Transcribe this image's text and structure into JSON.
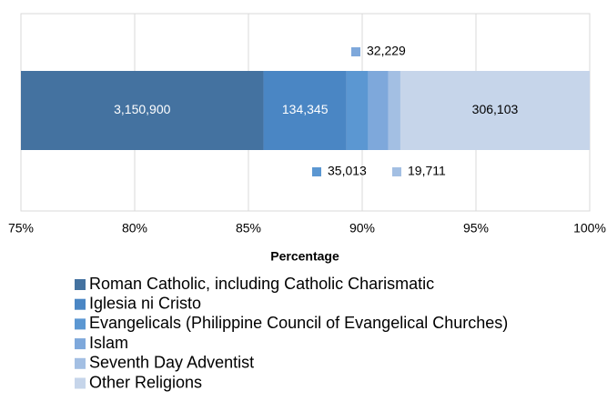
{
  "chart_data": {
    "type": "stacked_percent_bar",
    "x_label": "Percentage",
    "xlim": [
      75,
      100
    ],
    "xticks": [
      {
        "value": 75,
        "label": "75%"
      },
      {
        "value": 80,
        "label": "80%"
      },
      {
        "value": 85,
        "label": "85%"
      },
      {
        "value": 90,
        "label": "90%"
      },
      {
        "value": 95,
        "label": "95%"
      },
      {
        "value": 100,
        "label": "100%"
      }
    ],
    "grid": true,
    "series": [
      {
        "name": "Roman Catholic, including Catholic Charismatic",
        "color": "#4472a0",
        "values": [
          3150900
        ],
        "value_labels": [
          "3,150,900"
        ]
      },
      {
        "name": "Iglesia ni Cristo",
        "color": "#4a86c4",
        "values": [
          134345
        ],
        "value_labels": [
          "134,345"
        ]
      },
      {
        "name": "Evangelicals (Philippine Council of Evangelical Churches)",
        "color": "#5b97d2",
        "values": [
          35013
        ],
        "value_labels": [
          "35,013"
        ]
      },
      {
        "name": "Islam",
        "color": "#7ea8db",
        "values": [
          32229
        ],
        "value_labels": [
          "32,229"
        ]
      },
      {
        "name": "Seventh Day Adventist",
        "color": "#a3bfe3",
        "values": [
          19711
        ],
        "value_labels": [
          "19,711"
        ]
      },
      {
        "name": "Other Religions",
        "color": "#c6d5ea",
        "values": [
          306103
        ],
        "value_labels": [
          "306,103"
        ]
      }
    ]
  }
}
